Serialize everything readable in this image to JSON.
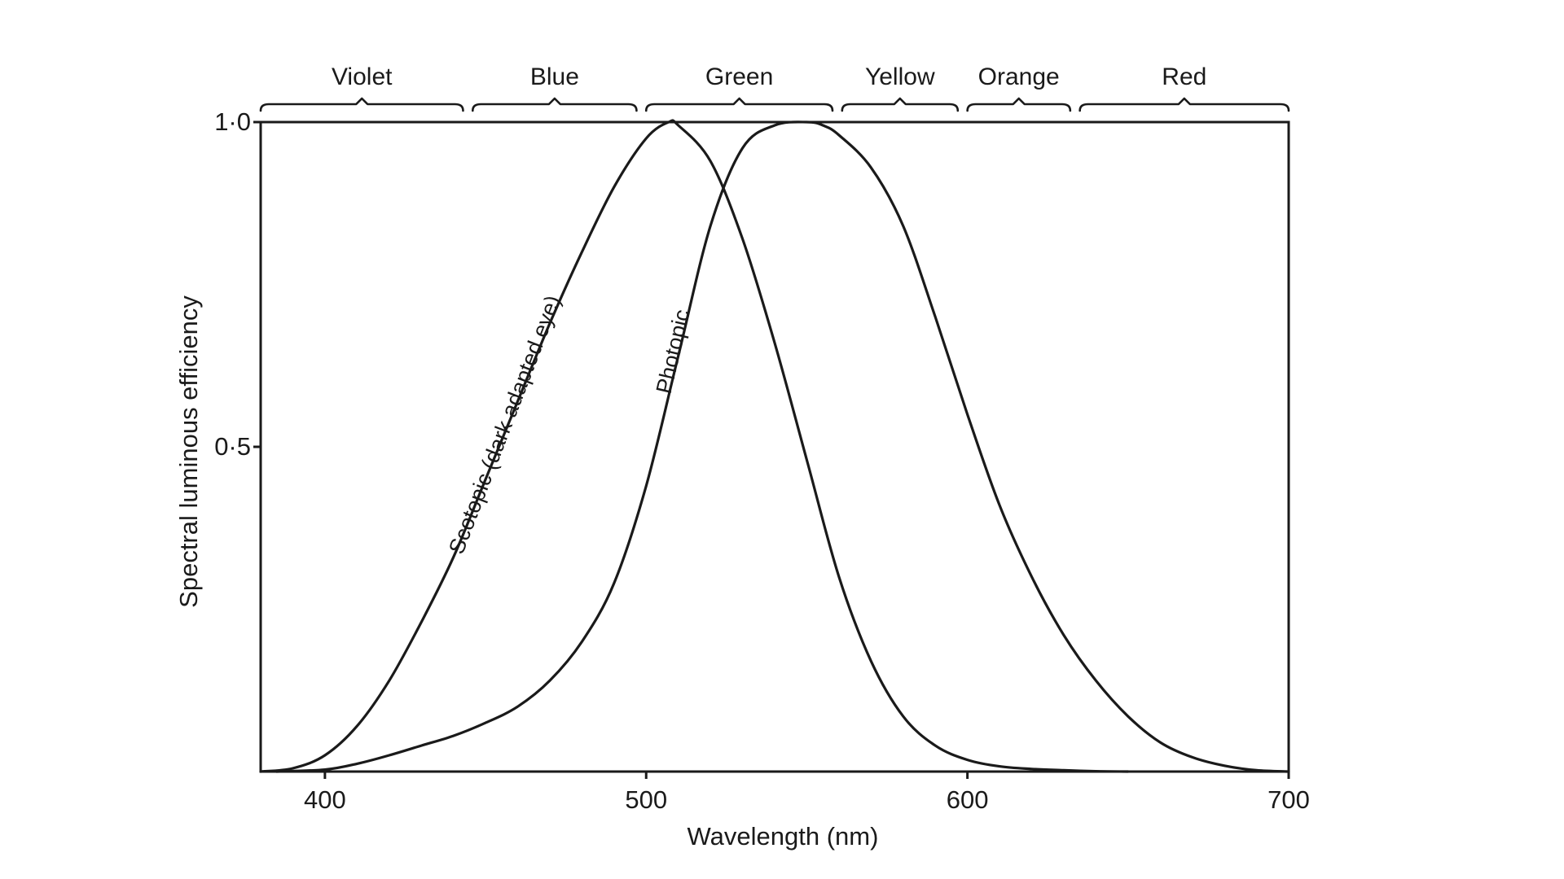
{
  "chart_data": {
    "type": "line",
    "title": "",
    "xlabel": "Wavelength (nm)",
    "ylabel": "Spectral luminous efficiency",
    "xlim": [
      380,
      700
    ],
    "ylim": [
      0,
      1.0
    ],
    "x_ticks": [
      {
        "value": 400,
        "label": "400"
      },
      {
        "value": 500,
        "label": "500"
      },
      {
        "value": 600,
        "label": "600"
      },
      {
        "value": 700,
        "label": "700"
      }
    ],
    "y_ticks": [
      {
        "value": 0.5,
        "label": "0·5"
      },
      {
        "value": 1.0,
        "label": "1·0"
      }
    ],
    "grid": false,
    "color_bands": [
      {
        "label": "Violet",
        "start": 380,
        "end": 443
      },
      {
        "label": "Blue",
        "start": 446,
        "end": 497
      },
      {
        "label": "Green",
        "start": 500,
        "end": 558
      },
      {
        "label": "Yellow",
        "start": 561,
        "end": 597
      },
      {
        "label": "Orange",
        "start": 600,
        "end": 632
      },
      {
        "label": "Red",
        "start": 635,
        "end": 700
      }
    ],
    "series": [
      {
        "name": "Scotopic (dark adapted eye)",
        "x": [
          380,
          390,
          400,
          410,
          420,
          430,
          440,
          450,
          460,
          470,
          480,
          490,
          500,
          507,
          510,
          520,
          530,
          540,
          550,
          560,
          570,
          580,
          590,
          600,
          610,
          620,
          630,
          640,
          650
        ],
        "y": [
          0.0,
          0.005,
          0.025,
          0.07,
          0.14,
          0.23,
          0.33,
          0.45,
          0.57,
          0.69,
          0.8,
          0.9,
          0.975,
          1.0,
          0.995,
          0.94,
          0.82,
          0.66,
          0.48,
          0.3,
          0.17,
          0.085,
          0.04,
          0.018,
          0.008,
          0.004,
          0.002,
          0.0005,
          0.0
        ]
      },
      {
        "name": "Photopic",
        "x": [
          385,
          400,
          410,
          420,
          430,
          440,
          450,
          460,
          470,
          480,
          490,
          500,
          510,
          520,
          530,
          540,
          550,
          555,
          560,
          570,
          580,
          590,
          600,
          610,
          620,
          630,
          640,
          650,
          660,
          670,
          680,
          690,
          700
        ],
        "y": [
          0.0,
          0.003,
          0.012,
          0.025,
          0.04,
          0.055,
          0.075,
          0.1,
          0.14,
          0.2,
          0.29,
          0.44,
          0.64,
          0.84,
          0.96,
          0.995,
          1.0,
          0.995,
          0.98,
          0.93,
          0.84,
          0.7,
          0.55,
          0.41,
          0.3,
          0.21,
          0.14,
          0.085,
          0.045,
          0.022,
          0.009,
          0.002,
          0.0
        ]
      }
    ]
  }
}
